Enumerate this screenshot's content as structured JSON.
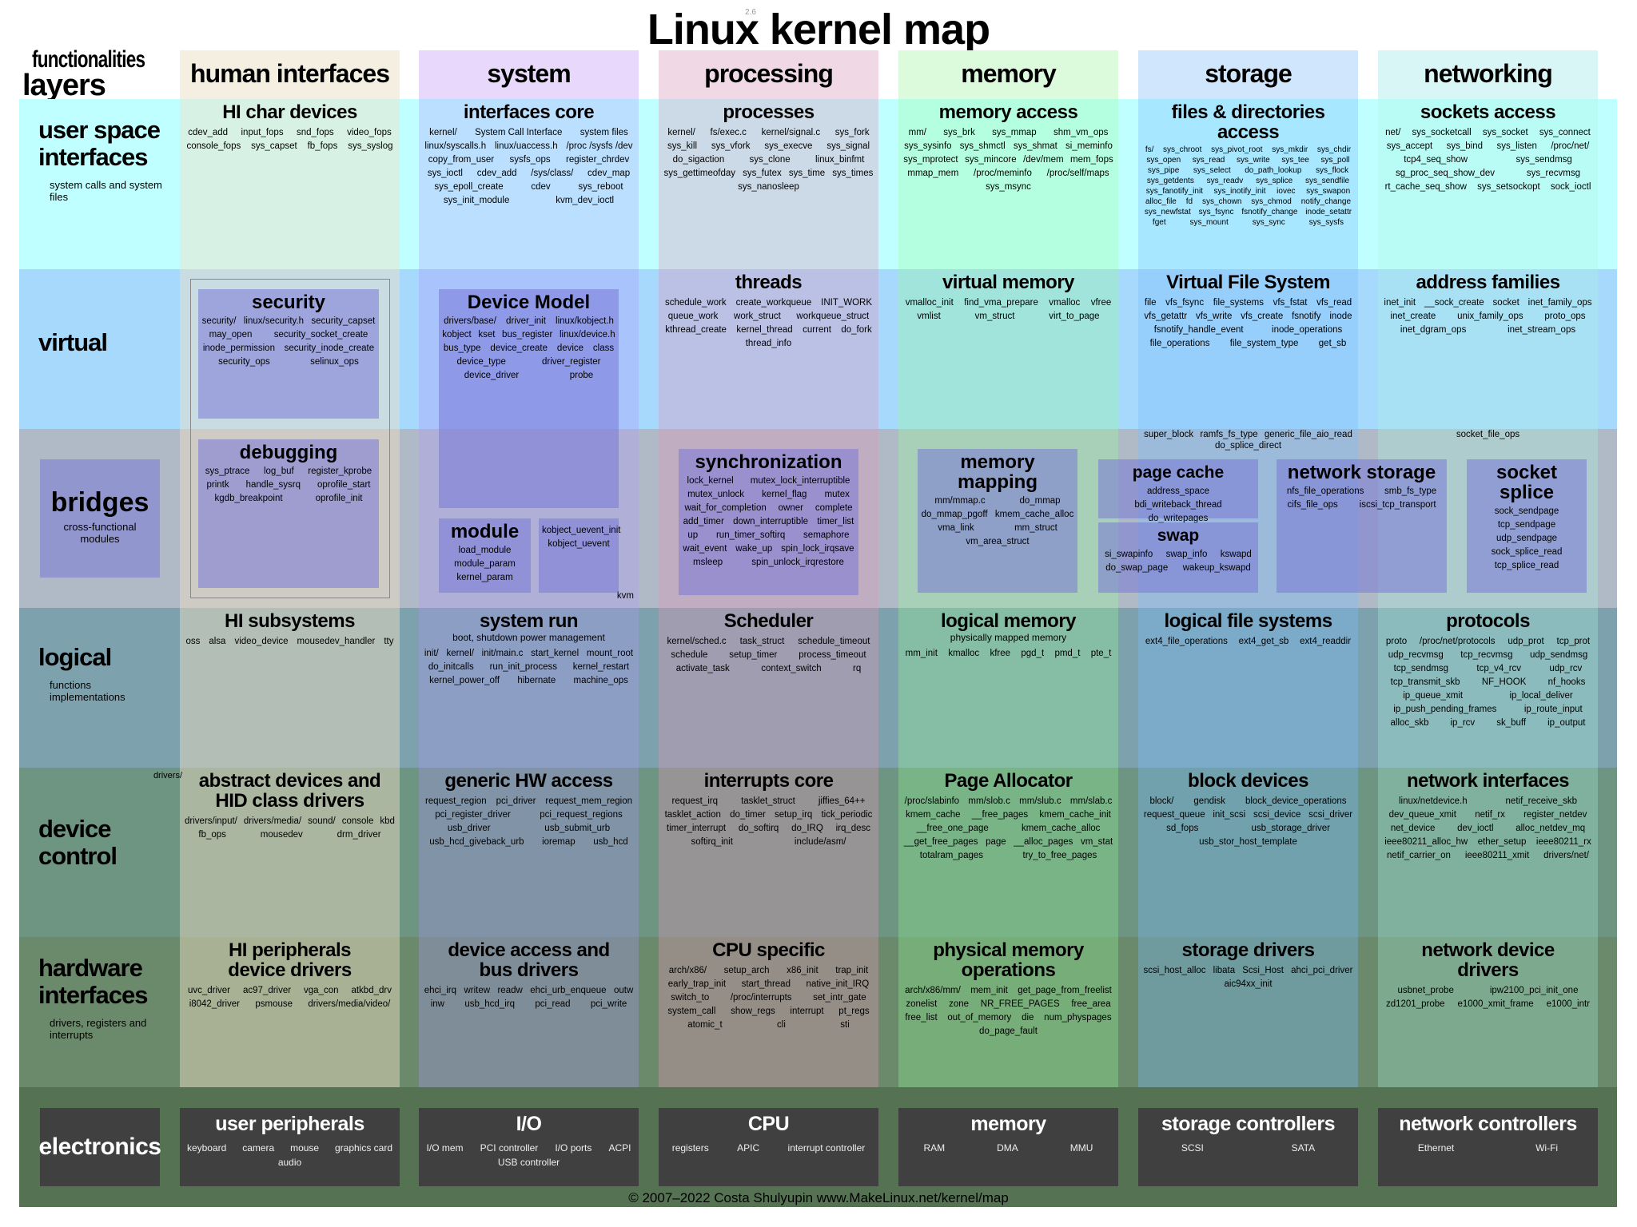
{
  "title": "Linux kernel map",
  "version": "2.6",
  "corner": {
    "functionalities": "functionalities",
    "layers": "layers"
  },
  "columns": [
    "human interfaces",
    "system",
    "processing",
    "memory",
    "storage",
    "networking"
  ],
  "rows": [
    {
      "name": "user space interfaces",
      "sub": "system calls and system files"
    },
    {
      "name": "virtual"
    },
    {
      "name": "bridges",
      "sub": "cross-functional modules"
    },
    {
      "name": "logical",
      "sub": "functions implementations"
    },
    {
      "name": "device control",
      "extra": "drivers/"
    },
    {
      "name": "hardware interfaces",
      "sub": "drivers, registers and interrupts"
    },
    {
      "name": "electronics"
    }
  ],
  "colors": {
    "rows": [
      "#c0ffff",
      "#a6d9fb",
      "#b0bac6",
      "#7ea2ad",
      "#6e9482",
      "#6b8a6c",
      "#557353"
    ],
    "columns": [
      "rgba(245,225,195,0.45)",
      "rgba(175,150,255,0.30)",
      "rgba(225,150,185,0.35)",
      "rgba(150,255,150,0.30)",
      "rgba(120,185,255,0.35)",
      "rgba(170,245,225,0.30)"
    ],
    "column_headers": [
      "#f5efe1",
      "#e8d8fc",
      "#f0d8e4",
      "#dcfadc",
      "#cfe6fc",
      "#d8f6f6"
    ],
    "box": "#9696cc",
    "electronics_box": "#404040"
  },
  "cells": [
    [
      {
        "title": "HI char devices",
        "items": [
          "cdev_add",
          "input_fops",
          "snd_fops",
          "video_fops",
          "console_fops",
          "sys_capset",
          "fb_fops",
          "sys_syslog"
        ]
      },
      {
        "title": "interfaces core",
        "items": [
          "kernel/",
          "System Call Interface",
          "system files",
          "linux/syscalls.h",
          "linux/uaccess.h",
          "/proc /sysfs /dev",
          "copy_from_user",
          "sysfs_ops",
          "register_chrdev",
          "sys_ioctl",
          "cdev_add",
          "/sys/class/",
          "cdev_map",
          "sys_epoll_create",
          "cdev",
          "sys_reboot",
          "sys_init_module",
          "kvm_dev_ioctl"
        ]
      },
      {
        "title": "processes",
        "items": [
          "kernel/",
          "fs/exec.c",
          "kernel/signal.c",
          "sys_fork",
          "sys_kill",
          "sys_vfork",
          "sys_execve",
          "sys_signal",
          "do_sigaction",
          "sys_clone",
          "linux_binfmt",
          "sys_gettimeofday",
          "sys_futex",
          "sys_time",
          "sys_times",
          "sys_nanosleep"
        ]
      },
      {
        "title": "memory access",
        "items": [
          "mm/",
          "sys_brk",
          "sys_mmap",
          "shm_vm_ops",
          "sys_sysinfo",
          "sys_shmctl",
          "sys_shmat",
          "si_meminfo",
          "sys_mprotect",
          "sys_mincore",
          "/dev/mem",
          "mem_fops",
          "mmap_mem",
          "/proc/meminfo",
          "/proc/self/maps",
          "sys_msync"
        ]
      },
      {
        "title": "files & directories access",
        "items": [
          "fs/",
          "sys_chroot",
          "sys_pivot_root",
          "sys_mkdir",
          "sys_chdir",
          "sys_open",
          "sys_read",
          "sys_write",
          "sys_tee",
          "sys_poll",
          "sys_pipe",
          "sys_select",
          "do_path_lookup",
          "sys_flock",
          "sys_getdents",
          "sys_readv",
          "sys_splice",
          "sys_sendfile",
          "sys_fanotify_init",
          "sys_inotify_init",
          "iovec",
          "sys_swapon",
          "alloc_file",
          "fd",
          "sys_chown",
          "sys_chmod",
          "notify_change",
          "sys_newfstat",
          "sys_fsync",
          "fsnotify_change",
          "inode_setattr",
          "fget",
          "sys_mount",
          "sys_sync",
          "sys_sysfs"
        ]
      },
      {
        "title": "sockets access",
        "items": [
          "net/",
          "sys_socketcall",
          "sys_socket",
          "sys_connect",
          "sys_accept",
          "sys_bind",
          "sys_listen",
          "/proc/net/",
          "tcp4_seq_show",
          "sys_sendmsg",
          "sg_proc_seq_show_dev",
          "sys_recvmsg",
          "rt_cache_seq_show",
          "sys_setsockopt",
          "sock_ioctl"
        ]
      }
    ],
    [
      {
        "title": "",
        "items": []
      },
      {
        "title": "",
        "items": []
      },
      {
        "title": "threads",
        "items": [
          "schedule_work",
          "create_workqueue",
          "INIT_WORK",
          "queue_work",
          "work_struct",
          "workqueue_struct",
          "kthread_create",
          "kernel_thread",
          "current",
          "do_fork",
          "thread_info"
        ]
      },
      {
        "title": "virtual memory",
        "items": [
          "vmalloc_init",
          "find_vma_prepare",
          "vmalloc",
          "vfree",
          "vmlist",
          "vm_struct",
          "virt_to_page"
        ]
      },
      {
        "title": "Virtual File System",
        "items": [
          "file",
          "vfs_fsync",
          "file_systems",
          "vfs_fstat",
          "vfs_read",
          "vfs_getattr",
          "vfs_write",
          "vfs_create",
          "fsnotify",
          "inode",
          "fsnotify_handle_event",
          "inode_operations",
          "file_operations",
          "file_system_type",
          "get_sb"
        ]
      },
      {
        "title": "address families",
        "items": [
          "inet_init",
          "__sock_create",
          "socket",
          "inet_family_ops",
          "inet_create",
          "unix_family_ops",
          "proto_ops",
          "inet_dgram_ops",
          "inet_stream_ops"
        ]
      }
    ],
    [
      {
        "title": "",
        "items": []
      },
      {
        "title": "",
        "items": [
          "kvm"
        ]
      },
      {
        "title": "",
        "items": []
      },
      {
        "title": "",
        "items": []
      },
      {
        "title": "",
        "items": [
          "super_block",
          "ramfs_fs_type",
          "generic_file_aio_read",
          "do_splice_direct"
        ]
      },
      {
        "title": "",
        "items": [
          "socket_file_ops"
        ]
      }
    ],
    [
      {
        "title": "HI subsystems",
        "items": [
          "oss",
          "alsa",
          "video_device",
          "mousedev_handler",
          "tty"
        ]
      },
      {
        "title": "system run",
        "sub": "boot, shutdown power management",
        "items": [
          "init/",
          "kernel/",
          "init/main.c",
          "start_kernel",
          "mount_root",
          "do_initcalls",
          "run_init_process",
          "kernel_restart",
          "kernel_power_off",
          "hibernate",
          "machine_ops"
        ]
      },
      {
        "title": "Scheduler",
        "items": [
          "kernel/sched.c",
          "task_struct",
          "schedule_timeout",
          "schedule",
          "setup_timer",
          "process_timeout",
          "activate_task",
          "context_switch",
          "rq"
        ]
      },
      {
        "title": "logical memory",
        "sub": "physically mapped memory",
        "items": [
          "mm_init",
          "kmalloc",
          "kfree",
          "pgd_t",
          "pmd_t",
          "pte_t"
        ]
      },
      {
        "title": "logical file systems",
        "items": [
          "ext4_file_operations",
          "ext4_get_sb",
          "ext4_readdir"
        ]
      },
      {
        "title": "protocols",
        "items": [
          "proto",
          "/proc/net/protocols",
          "udp_prot",
          "tcp_prot",
          "udp_recvmsg",
          "tcp_recvmsg",
          "udp_sendmsg",
          "tcp_sendmsg",
          "tcp_v4_rcv",
          "udp_rcv",
          "tcp_transmit_skb",
          "NF_HOOK",
          "nf_hooks",
          "ip_queue_xmit",
          "ip_local_deliver",
          "ip_push_pending_frames",
          "ip_route_input",
          "alloc_skb",
          "ip_rcv",
          "sk_buff",
          "ip_output"
        ]
      }
    ],
    [
      {
        "title": "abstract devices and HID class drivers",
        "items": [
          "drivers/input/",
          "drivers/media/",
          "sound/",
          "console",
          "kbd",
          "fb_ops",
          "mousedev",
          "drm_driver"
        ]
      },
      {
        "title": "generic HW access",
        "items": [
          "request_region",
          "pci_driver",
          "request_mem_region",
          "pci_register_driver",
          "pci_request_regions",
          "usb_driver",
          "usb_submit_urb",
          "usb_hcd_giveback_urb",
          "ioremap",
          "usb_hcd"
        ]
      },
      {
        "title": "interrupts core",
        "items": [
          "request_irq",
          "tasklet_struct",
          "jiffies_64++",
          "tasklet_action",
          "do_timer",
          "setup_irq",
          "tick_periodic",
          "timer_interrupt",
          "do_softirq",
          "do_IRQ",
          "irq_desc",
          "softirq_init",
          "include/asm/"
        ]
      },
      {
        "title": "Page Allocator",
        "items": [
          "/proc/slabinfo",
          "mm/slob.c",
          "mm/slub.c",
          "mm/slab.c",
          "kmem_cache",
          "__free_pages",
          "kmem_cache_init",
          "__free_one_page",
          "kmem_cache_alloc",
          "__get_free_pages",
          "page",
          "__alloc_pages",
          "vm_stat",
          "totalram_pages",
          "try_to_free_pages"
        ]
      },
      {
        "title": "block devices",
        "items": [
          "block/",
          "gendisk",
          "block_device_operations",
          "request_queue",
          "init_scsi",
          "scsi_device",
          "scsi_driver",
          "sd_fops",
          "usb_storage_driver",
          "usb_stor_host_template"
        ]
      },
      {
        "title": "network interfaces",
        "items": [
          "linux/netdevice.h",
          "netif_receive_skb",
          "dev_queue_xmit",
          "netif_rx",
          "register_netdev",
          "net_device",
          "dev_ioctl",
          "alloc_netdev_mq",
          "ieee80211_alloc_hw",
          "ether_setup",
          "ieee80211_rx",
          "netif_carrier_on",
          "ieee80211_xmit",
          "drivers/net/"
        ]
      }
    ],
    [
      {
        "title": "HI peripherals device drivers",
        "items": [
          "uvc_driver",
          "ac97_driver",
          "vga_con",
          "atkbd_drv",
          "i8042_driver",
          "psmouse",
          "drivers/media/video/"
        ]
      },
      {
        "title": "device access and bus drivers",
        "items": [
          "ehci_irq",
          "writew",
          "readw",
          "ehci_urb_enqueue",
          "outw",
          "inw",
          "usb_hcd_irq",
          "pci_read",
          "pci_write"
        ]
      },
      {
        "title": "CPU specific",
        "items": [
          "arch/x86/",
          "setup_arch",
          "x86_init",
          "trap_init",
          "early_trap_init",
          "start_thread",
          "native_init_IRQ",
          "switch_to",
          "/proc/interrupts",
          "set_intr_gate",
          "system_call",
          "show_regs",
          "interrupt",
          "pt_regs",
          "atomic_t",
          "cli",
          "sti"
        ]
      },
      {
        "title": "physical memory operations",
        "items": [
          "arch/x86/mm/",
          "mem_init",
          "get_page_from_freelist",
          "zonelist",
          "zone",
          "NR_FREE_PAGES",
          "free_area",
          "free_list",
          "out_of_memory",
          "die",
          "num_physpages",
          "do_page_fault"
        ]
      },
      {
        "title": "storage drivers",
        "items": [
          "scsi_host_alloc",
          "libata",
          "Scsi_Host",
          "ahci_pci_driver",
          "aic94xx_init"
        ]
      },
      {
        "title": "network device drivers",
        "items": [
          "usbnet_probe",
          "ipw2100_pci_init_one",
          "zd1201_probe",
          "e1000_xmit_frame",
          "e1000_intr"
        ]
      }
    ]
  ],
  "boxes": [
    {
      "title": "security",
      "items": [
        "security/",
        "linux/security.h",
        "security_capset",
        "may_open",
        "security_socket_create",
        "inode_permission",
        "security_inode_create",
        "security_ops",
        "selinux_ops"
      ]
    },
    {
      "title": "debugging",
      "items": [
        "sys_ptrace",
        "log_buf",
        "register_kprobe",
        "printk",
        "handle_sysrq",
        "oprofile_start",
        "kgdb_breakpoint",
        "oprofile_init"
      ]
    },
    {
      "title": "Device Model",
      "items": [
        "drivers/base/",
        "driver_init",
        "linux/kobject.h",
        "kobject",
        "kset",
        "bus_register",
        "linux/device.h",
        "bus_type",
        "device_create",
        "device",
        "class",
        "device_type",
        "driver_register",
        "device_driver",
        "probe"
      ]
    },
    {
      "title": "module",
      "items": [
        "load_module",
        "module_param",
        "kernel_param"
      ]
    },
    {
      "title": "",
      "items": [
        "kobject_uevent_init",
        "kobject_uevent"
      ]
    },
    {
      "title": "synchronization",
      "items": [
        "lock_kernel",
        "mutex_lock_interruptible",
        "mutex_unlock",
        "kernel_flag",
        "mutex",
        "wait_for_completion",
        "owner",
        "complete",
        "add_timer",
        "down_interruptible",
        "timer_list",
        "up",
        "run_timer_softirq",
        "semaphore",
        "wait_event",
        "wake_up",
        "spin_lock_irqsave",
        "msleep",
        "spin_unlock_irqrestore"
      ]
    },
    {
      "title": "memory mapping",
      "items": [
        "mm/mmap.c",
        "do_mmap",
        "do_mmap_pgoff",
        "kmem_cache_alloc",
        "vma_link",
        "mm_struct",
        "vm_area_struct"
      ]
    },
    {
      "title": "page cache",
      "items": [
        "address_space",
        "bdi_writeback_thread",
        "do_writepages"
      ]
    },
    {
      "title": "swap",
      "items": [
        "si_swapinfo",
        "swap_info",
        "kswapd",
        "do_swap_page",
        "wakeup_kswapd"
      ]
    },
    {
      "title": "network storage",
      "items": [
        "nfs_file_operations",
        "smb_fs_type",
        "cifs_file_ops",
        "iscsi_tcp_transport"
      ]
    },
    {
      "title": "socket splice",
      "items": [
        "sock_sendpage",
        "tcp_sendpage",
        "udp_sendpage",
        "sock_splice_read",
        "tcp_splice_read"
      ]
    }
  ],
  "electronics": [
    {
      "title": "user peripherals",
      "items": [
        "keyboard",
        "camera",
        "mouse",
        "graphics card",
        "audio"
      ]
    },
    {
      "title": "I/O",
      "items": [
        "I/O mem",
        "PCI controller",
        "I/O ports",
        "ACPI",
        "USB controller"
      ]
    },
    {
      "title": "CPU",
      "items": [
        "registers",
        "APIC",
        "interrupt controller"
      ]
    },
    {
      "title": "memory",
      "items": [
        "RAM",
        "DMA",
        "MMU"
      ]
    },
    {
      "title": "storage controllers",
      "items": [
        "SCSI",
        "SATA"
      ]
    },
    {
      "title": "network controllers",
      "items": [
        "Ethernet",
        "Wi-Fi"
      ]
    }
  ],
  "footer": "© 2007–2022 Costa Shulyupin www.MakeLinux.net/kernel/map"
}
